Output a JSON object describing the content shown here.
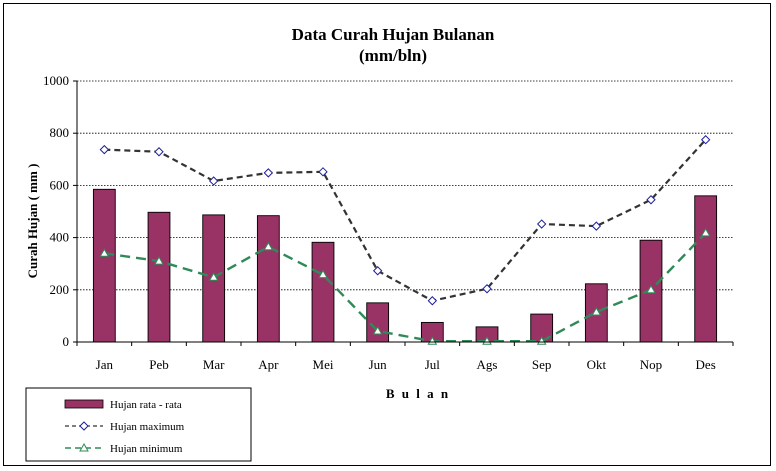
{
  "chart_data": {
    "type": "bar",
    "title": "Data Curah Hujan Bulanan",
    "subtitle": "(mm/bln)",
    "xlabel": "B u l a n",
    "ylabel": "Curah Hujan ( mm )",
    "categories": [
      "Jan",
      "Peb",
      "Mar",
      "Apr",
      "Mei",
      "Jun",
      "Jul",
      "Ags",
      "Sep",
      "Okt",
      "Nop",
      "Des"
    ],
    "ylim": [
      0,
      1000
    ],
    "yticks": [
      0,
      200,
      400,
      600,
      800,
      1000
    ],
    "grid": true,
    "legend_position": "bottom-left",
    "series": [
      {
        "name": "Hujan rata - rata",
        "kind": "bar",
        "color": "#993366",
        "values": [
          585,
          497,
          487,
          484,
          382,
          150,
          75,
          58,
          107,
          223,
          390,
          560
        ]
      },
      {
        "name": "Hujan maximum",
        "kind": "line",
        "style": "dashed",
        "marker": "diamond",
        "color": "#333333",
        "marker_color": "#1f1f99",
        "values": [
          737,
          729,
          617,
          648,
          652,
          273,
          158,
          204,
          452,
          444,
          545,
          775
        ]
      },
      {
        "name": "Hujan minimum",
        "kind": "line",
        "style": "dashed",
        "marker": "triangle",
        "color": "#2e8b57",
        "values": [
          340,
          310,
          248,
          365,
          258,
          42,
          3,
          3,
          3,
          115,
          200,
          418
        ]
      }
    ]
  }
}
